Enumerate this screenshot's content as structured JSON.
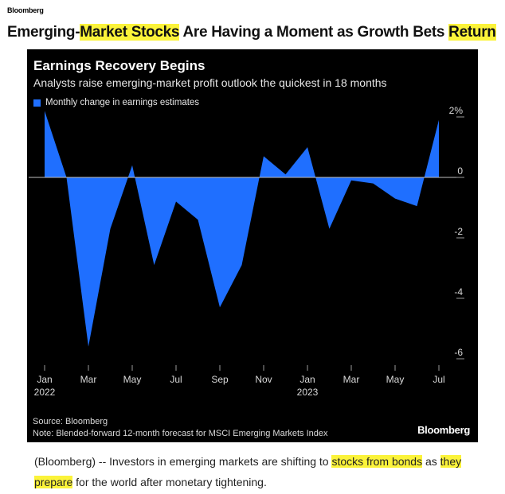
{
  "brand_top": "Bloomberg",
  "headline": {
    "parts": [
      {
        "text": "Emerging-",
        "hl": false
      },
      {
        "text": "Market Stocks",
        "hl": true
      },
      {
        "text": " Are Having a Moment as Growth Bets ",
        "hl": false
      },
      {
        "text": "Return",
        "hl": true
      }
    ]
  },
  "colors": {
    "series": "#1f6fff",
    "highlight": "#fbf33a",
    "panel": "#000000"
  },
  "chart_data": {
    "type": "area",
    "title": "Earnings Recovery Begins",
    "subtitle": "Analysts raise emerging-market profit outlook the quickest in 18 months",
    "legend": "Monthly change in earnings estimates",
    "x": [
      "2022-01",
      "2022-02",
      "2022-03",
      "2022-04",
      "2022-05",
      "2022-06",
      "2022-07",
      "2022-08",
      "2022-09",
      "2022-10",
      "2022-11",
      "2022-12",
      "2023-01",
      "2023-02",
      "2023-03",
      "2023-04",
      "2023-05",
      "2023-06",
      "2023-07"
    ],
    "series": [
      {
        "values": [
          2.2,
          0,
          -5.6,
          -1.7,
          0.4,
          -2.9,
          -0.8,
          -1.4,
          -4.3,
          -2.9,
          0.7,
          0.1,
          1.0,
          -1.7,
          -0.1,
          -0.2,
          -0.7,
          -0.95,
          1.9
        ]
      }
    ],
    "ylim": [
      -6,
      2
    ],
    "yticks": [
      2,
      0,
      -2,
      -4,
      -6
    ],
    "ytick_labels": [
      "2%",
      "0",
      "-2",
      "-4",
      "-6"
    ],
    "xtick_labels": [
      {
        "month": "Jan",
        "year": "2022"
      },
      {
        "month": "Mar",
        "year": ""
      },
      {
        "month": "May",
        "year": ""
      },
      {
        "month": "Jul",
        "year": ""
      },
      {
        "month": "Sep",
        "year": ""
      },
      {
        "month": "Nov",
        "year": ""
      },
      {
        "month": "Jan",
        "year": "2023"
      },
      {
        "month": "Mar",
        "year": ""
      },
      {
        "month": "May",
        "year": ""
      },
      {
        "month": "Jul",
        "year": ""
      }
    ],
    "grid": false,
    "legend_position": "top-left"
  },
  "footer": {
    "source": "Source: Bloomberg",
    "note": "Note: Blended-forward 12-month forecast for MSCI Emerging Markets Index",
    "brand": "Bloomberg"
  },
  "body": {
    "parts": [
      {
        "text": "(Bloomberg) -- Investors in emerging markets are shifting to ",
        "hl": false
      },
      {
        "text": "stocks from bonds",
        "hl": true
      },
      {
        "text": " as ",
        "hl": false
      },
      {
        "text": "they prepare",
        "hl": true
      },
      {
        "text": " for the world after monetary tightening.",
        "hl": false
      }
    ]
  }
}
